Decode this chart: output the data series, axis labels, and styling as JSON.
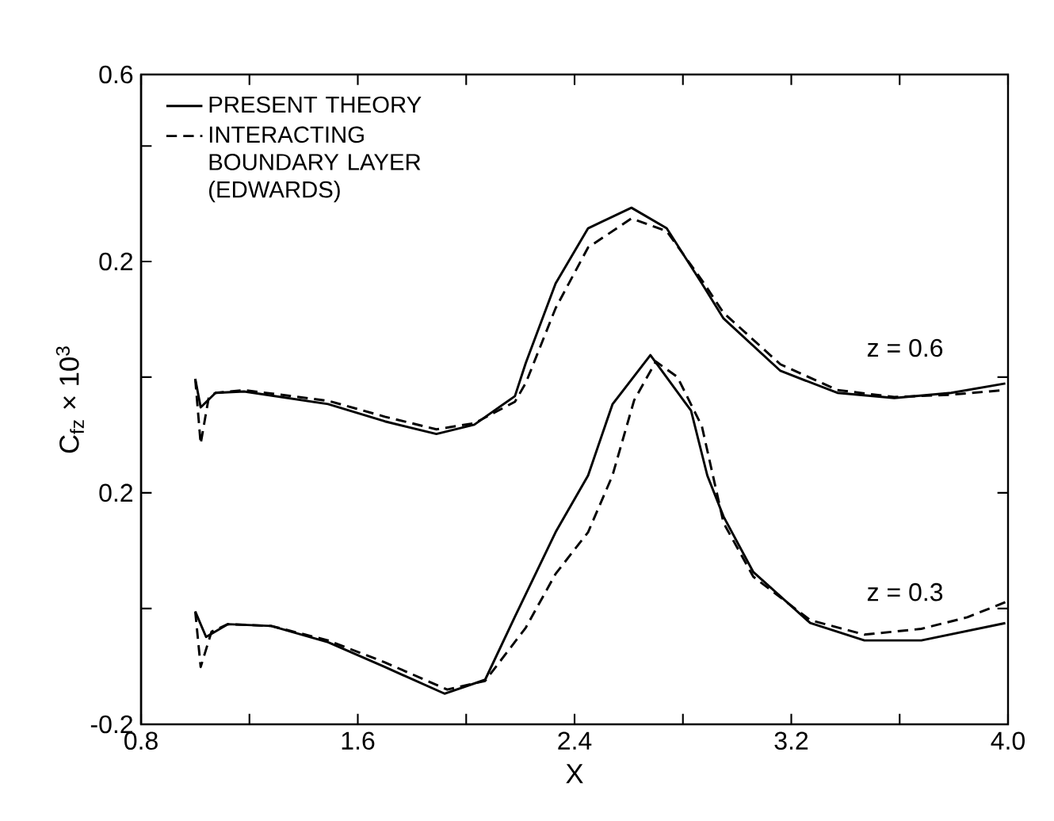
{
  "chart_data": {
    "type": "line",
    "xlabel": "X",
    "ylabel": "C$_{fz}$ × 10$^{3}$",
    "xlim": [
      0.8,
      4.0
    ],
    "xticks": [
      0.8,
      {
        "value": 1.2,
        "label": null
      },
      1.6,
      {
        "value": 2.0,
        "label": null
      },
      2.4,
      {
        "value": 2.8,
        "label": null
      },
      3.2,
      {
        "value": 3.6,
        "label": null
      },
      {
        "value": 4.0,
        "label": "4.0"
      }
    ],
    "ylim": [
      -0.2,
      0.923
    ],
    "yticks": [
      -0.2,
      {
        "value": 0.0,
        "label": null
      },
      0.2,
      {
        "value": 0.4,
        "label": null
      }
    ],
    "y2lim": [
      -0.79,
      0.6
    ],
    "y2ticks": [
      0.2,
      {
        "value": 0.447,
        "label": null
      },
      0.6
    ],
    "legend": "top left",
    "grid": false,
    "marker": "none",
    "annotations": [
      "z = 0.6",
      "z = 0.3"
    ],
    "series": [
      {
        "name": "PRESENT THEORY",
        "color": "#000000",
        "line_style": "solid",
        "axis": "y2",
        "x": [
          1.0,
          1.02,
          1.075,
          1.18,
          1.49,
          1.7,
          1.89,
          2.03,
          2.18,
          2.22,
          2.33,
          2.45,
          2.61,
          2.74,
          2.87,
          2.95,
          3.16,
          3.37,
          3.58,
          3.79,
          3.99
        ],
        "values": [
          -0.051,
          -0.112,
          -0.081,
          -0.078,
          -0.105,
          -0.142,
          -0.169,
          -0.149,
          -0.088,
          -0.017,
          0.153,
          0.271,
          0.315,
          0.271,
          0.153,
          0.078,
          -0.034,
          -0.081,
          -0.092,
          -0.081,
          -0.061
        ]
      },
      {
        "name": "INTERACTING BOUNDARY LAYER (EDWARDS)",
        "color": "#000000",
        "line_style": "dashed",
        "axis": "y2",
        "x": [
          1.0,
          1.02,
          1.05,
          1.075,
          1.18,
          1.49,
          1.7,
          1.89,
          2.03,
          2.18,
          2.22,
          2.33,
          2.45,
          2.61,
          2.74,
          2.87,
          2.95,
          3.16,
          3.37,
          3.58,
          3.79,
          3.99
        ],
        "values": [
          -0.051,
          -0.19,
          -0.09,
          -0.081,
          -0.075,
          -0.098,
          -0.132,
          -0.159,
          -0.146,
          -0.1,
          -0.06,
          0.1,
          0.23,
          0.292,
          0.265,
          0.16,
          0.09,
          -0.02,
          -0.075,
          -0.09,
          -0.085,
          -0.075
        ]
      },
      {
        "color": "#000000",
        "line_style": "solid",
        "axis": "y",
        "x": [
          1.0,
          1.04,
          1.12,
          1.28,
          1.49,
          1.7,
          1.92,
          2.07,
          2.18,
          2.33,
          2.45,
          2.54,
          2.68,
          2.83,
          2.89,
          2.95,
          3.06,
          3.27,
          3.47,
          3.68,
          3.99
        ],
        "values": [
          -0.005,
          -0.049,
          -0.027,
          -0.03,
          -0.058,
          -0.101,
          -0.147,
          -0.123,
          -0.014,
          0.132,
          0.23,
          0.353,
          0.438,
          0.342,
          0.23,
          0.159,
          0.063,
          -0.025,
          -0.055,
          -0.055,
          -0.025
        ]
      },
      {
        "color": "#000000",
        "line_style": "dashed",
        "axis": "y",
        "x": [
          1.0,
          1.02,
          1.06,
          1.12,
          1.28,
          1.49,
          1.7,
          1.93,
          2.07,
          2.22,
          2.33,
          2.45,
          2.54,
          2.62,
          2.7,
          2.78,
          2.87,
          2.95,
          3.06,
          3.27,
          3.47,
          3.68,
          3.85,
          3.99
        ],
        "values": [
          -0.005,
          -0.101,
          -0.04,
          -0.027,
          -0.03,
          -0.055,
          -0.093,
          -0.14,
          -0.125,
          -0.033,
          0.06,
          0.132,
          0.23,
          0.36,
          0.427,
          0.4,
          0.315,
          0.148,
          0.055,
          -0.02,
          -0.045,
          -0.035,
          -0.015,
          0.011
        ]
      }
    ]
  }
}
